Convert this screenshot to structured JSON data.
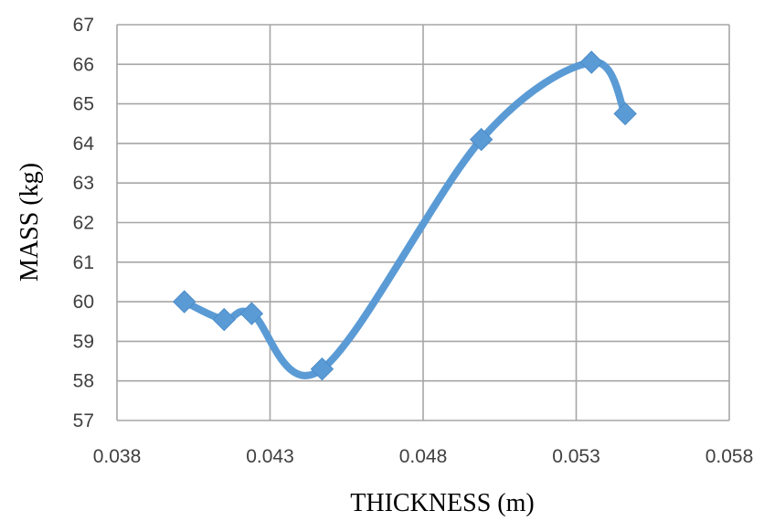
{
  "chart_data": {
    "type": "scatter",
    "title": "",
    "xlabel": "THICKNESS (m)",
    "ylabel": "MASS (kg)",
    "xlim": [
      0.038,
      0.058
    ],
    "ylim": [
      57,
      67
    ],
    "xticks": [
      0.038,
      0.043,
      0.048,
      0.053,
      0.058
    ],
    "xtick_labels": [
      "0.038",
      "0.043",
      "0.048",
      "0.053",
      "0.058"
    ],
    "yticks": [
      57,
      58,
      59,
      60,
      61,
      62,
      63,
      64,
      65,
      66,
      67
    ],
    "ytick_labels": [
      "57",
      "58",
      "59",
      "60",
      "61",
      "62",
      "63",
      "64",
      "65",
      "66",
      "67"
    ],
    "grid": true,
    "legend": "none",
    "smooth_line": true,
    "marker": "diamond",
    "color": "#5b9bd5",
    "series": [
      {
        "x": [
          0.0402,
          0.0415,
          0.0424,
          0.0447,
          0.0499,
          0.0535,
          0.0546
        ],
        "y": [
          60.0,
          59.55,
          59.7,
          58.3,
          64.1,
          66.05,
          64.75
        ]
      }
    ]
  }
}
